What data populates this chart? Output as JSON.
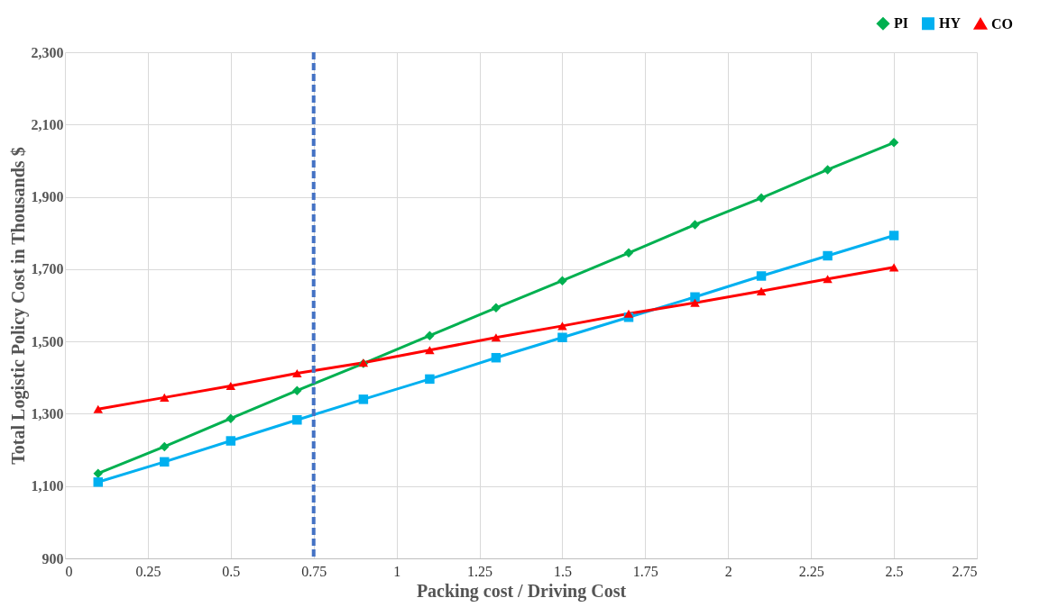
{
  "chart_data": {
    "type": "line",
    "xlabel": "Packing cost / Driving Cost",
    "ylabel": "Total Logistic Policy Cost in Thousands $",
    "x": [
      0.1,
      0.3,
      0.5,
      0.7,
      0.9,
      1.1,
      1.3,
      1.5,
      1.7,
      1.9,
      2.1,
      2.3,
      2.5
    ],
    "series": [
      {
        "name": "PI",
        "color": "#00b050",
        "marker": "diamond",
        "values": [
          1135,
          1209,
          1287,
          1364,
          1439,
          1516,
          1593,
          1668,
          1745,
          1823,
          1897,
          1975,
          2050
        ]
      },
      {
        "name": "HY",
        "color": "#00b0f0",
        "marker": "square",
        "values": [
          1111,
          1167,
          1225,
          1283,
          1340,
          1396,
          1455,
          1511,
          1567,
          1623,
          1681,
          1737,
          1793
        ]
      },
      {
        "name": "CO",
        "color": "#ff0000",
        "marker": "triangle",
        "values": [
          1313,
          1345,
          1377,
          1412,
          1441,
          1476,
          1511,
          1543,
          1577,
          1607,
          1639,
          1673,
          1705
        ]
      }
    ],
    "xlim": [
      0,
      2.75
    ],
    "xticks": [
      0,
      0.25,
      0.5,
      0.75,
      1,
      1.25,
      1.5,
      1.75,
      2,
      2.25,
      2.5,
      2.75
    ],
    "ylim": [
      900,
      2300
    ],
    "yticks": [
      {
        "value": 900,
        "label": "900"
      },
      {
        "value": 1100,
        "label": "1,100"
      },
      {
        "value": 1300,
        "label": "1,300"
      },
      {
        "value": 1500,
        "label": "1,500"
      },
      {
        "value": 1700,
        "label": "1,700"
      },
      {
        "value": 1900,
        "label": "1,900"
      },
      {
        "value": 2100,
        "label": "2,100"
      },
      {
        "value": 2300,
        "label": "2,300"
      }
    ],
    "ref_lines": [
      {
        "axis": "x",
        "value": 0.75,
        "color": "#4472c4",
        "line_style": "dashed"
      }
    ],
    "grid": true,
    "legend": "top right",
    "line_style": "solid"
  }
}
